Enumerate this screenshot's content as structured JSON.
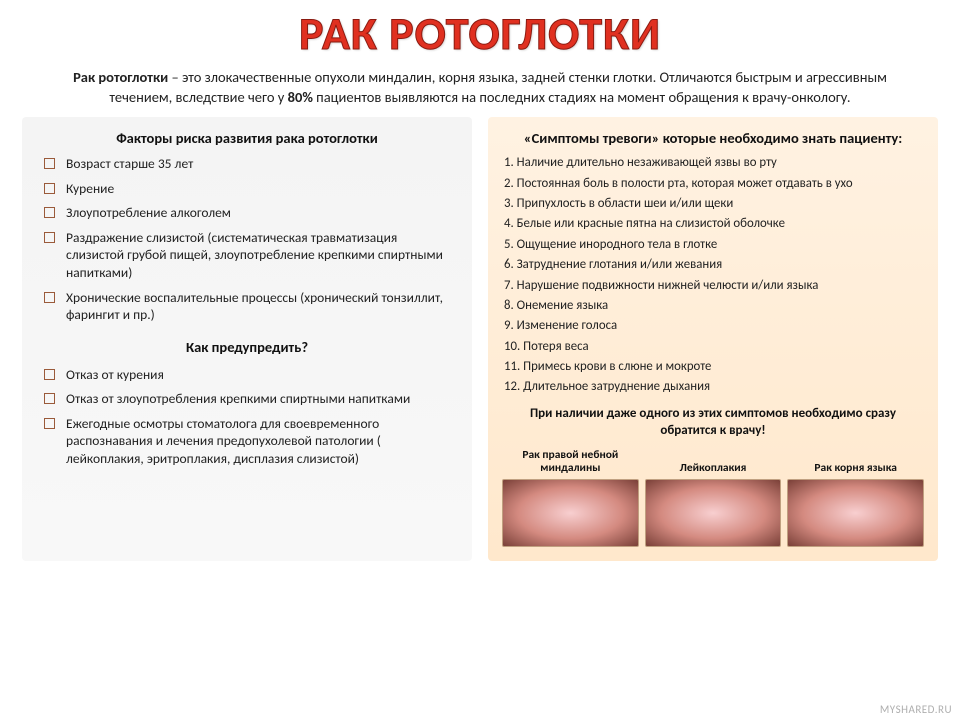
{
  "title": "РАК РОТОГЛОТКИ",
  "intro_before": "Рак ротоглотки",
  "intro_mid": " – это злокачественные опухоли миндалин, корня языка, задней стенки глотки. Отличаются быстрым и агрессивным течением, вследствие чего у ",
  "intro_pct": "80%",
  "intro_after": " пациентов выявляются на последних стадиях на момент обращения к врачу-онкологу.",
  "left": {
    "heading": "Факторы риска развития рака ротоглотки",
    "risks": [
      "Возраст старше 35 лет",
      "Курение",
      "Злоупотребление алкоголем",
      "Раздражение слизистой (систематическая травматизация слизистой грубой пищей, злоупотребление крепкими спиртными напитками)",
      "Хронические воспалительные процессы (хронический тонзиллит, фарингит и пр.)"
    ],
    "sub_heading": "Как предупредить?",
    "prevent": [
      "Отказ от курения",
      "Отказ от злоупотребления крепкими спиртными напитками",
      "Ежегодные осмотры стоматолога для своевременного распознавания и лечения предопухолевой патологии ( лейкоплакия, эритроплакия, дисплазия слизистой)"
    ]
  },
  "right": {
    "heading": "«Симптомы тревоги» которые необходимо знать пациенту:",
    "symptoms": [
      "Наличие длительно незаживающей язвы во рту",
      "Постоянная боль в полости рта, которая может отдавать в ухо",
      "Припухлость в области шеи и/или щеки",
      "Белые или красные пятна на слизистой оболочке",
      "Ощущение инородного тела в глотке",
      "Затруднение глотания и/или жевания",
      "Нарушение подвижности нижней челюсти и/или языка",
      "Онемение языка",
      "Изменение голоса",
      "Потеря веса",
      "Примесь крови в слюне и мокроте",
      "Длительное затруднение дыхания"
    ],
    "footnote": "При наличии даже одного из этих симптомов необходимо сразу обратится к врачу!",
    "images": [
      {
        "label": "Рак правой небной миндалины"
      },
      {
        "label": "Лейкоплакия"
      },
      {
        "label": "Рак корня языка"
      }
    ]
  },
  "watermark": "MYSHARED.RU",
  "colors": {
    "title": "#e03020",
    "left_card_bg": "#f5f5f5",
    "right_card_bg": "#ffe8cc",
    "bullet_border": "#9a5a3a"
  }
}
